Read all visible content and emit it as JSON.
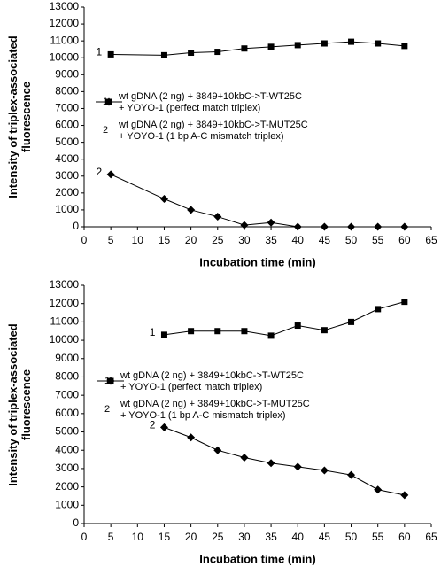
{
  "chart_data": [
    {
      "type": "line",
      "xlabel": "Incubation time (min)",
      "ylabel": "Intensity of triplex-associated\nfluorescence",
      "xlim": [
        0,
        65
      ],
      "xticks": [
        0,
        5,
        10,
        15,
        20,
        25,
        30,
        35,
        40,
        45,
        50,
        55,
        60,
        65
      ],
      "ylim": [
        0,
        13000
      ],
      "yticks": [
        0,
        1000,
        2000,
        3000,
        4000,
        5000,
        6000,
        7000,
        8000,
        9000,
        10000,
        11000,
        12000,
        13000
      ],
      "series": [
        {
          "label": "1",
          "name": "wt gDNA (2 ng) + 3849+10kbC->T-WT25C\n+ YOYO-1 (perfect match triplex)",
          "color": "#000000",
          "marker": "square",
          "x": [
            5,
            15,
            20,
            25,
            30,
            35,
            40,
            45,
            50,
            55,
            60
          ],
          "values": [
            10200,
            10150,
            10300,
            10350,
            10550,
            10650,
            10750,
            10850,
            10950,
            10850,
            10700
          ]
        },
        {
          "label": "2",
          "name": "wt gDNA (2 ng) + 3849+10kbC->T-MUT25C\n+ YOYO-1 (1 bp A-C mismatch triplex)",
          "color": "#000000",
          "marker": "diamond",
          "x": [
            5,
            15,
            20,
            25,
            30,
            35,
            40,
            45,
            50,
            55,
            60
          ],
          "values": [
            3100,
            1650,
            1000,
            600,
            100,
            250,
            0,
            0,
            0,
            0,
            0
          ]
        }
      ]
    },
    {
      "type": "line",
      "xlabel": "Incubation time (min)",
      "ylabel": "Intensity of triplex-associated\nfluorescence",
      "xlim": [
        0,
        65
      ],
      "xticks": [
        0,
        5,
        10,
        15,
        20,
        25,
        30,
        35,
        40,
        45,
        50,
        55,
        60,
        65
      ],
      "ylim": [
        0,
        13000
      ],
      "yticks": [
        0,
        1000,
        2000,
        3000,
        4000,
        5000,
        6000,
        7000,
        8000,
        9000,
        10000,
        11000,
        12000,
        13000
      ],
      "series": [
        {
          "label": "1",
          "name": "wt gDNA (2 ng) + 3849+10kbC->T-WT25C\n+ YOYO-1 (perfect match triplex)",
          "color": "#000000",
          "marker": "square",
          "x": [
            15,
            20,
            25,
            30,
            35,
            40,
            45,
            50,
            55,
            60
          ],
          "values": [
            10300,
            10500,
            10500,
            10500,
            10250,
            10800,
            10550,
            11000,
            11700,
            12100
          ]
        },
        {
          "label": "2",
          "name": "wt gDNA (2 ng) + 3849+10kbC->T-MUT25C\n+ YOYO-1 (1 bp A-C mismatch triplex)",
          "color": "#000000",
          "marker": "diamond",
          "x": [
            15,
            20,
            25,
            30,
            35,
            40,
            45,
            50,
            55,
            60
          ],
          "values": [
            5250,
            4700,
            4000,
            3600,
            3300,
            3100,
            2900,
            2650,
            1850,
            1550
          ]
        }
      ]
    }
  ]
}
